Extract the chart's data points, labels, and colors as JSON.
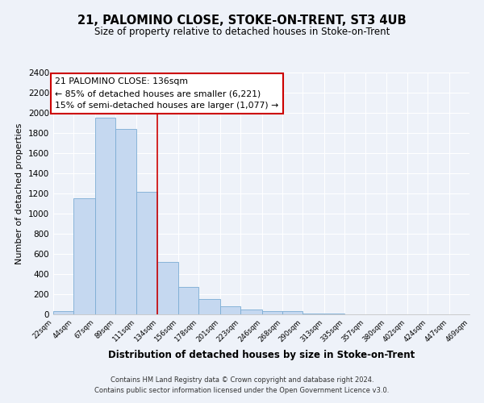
{
  "title1": "21, PALOMINO CLOSE, STOKE-ON-TRENT, ST3 4UB",
  "title2": "Size of property relative to detached houses in Stoke-on-Trent",
  "xlabel": "Distribution of detached houses by size in Stoke-on-Trent",
  "ylabel": "Number of detached properties",
  "bar_edges": [
    22,
    44,
    67,
    89,
    111,
    134,
    156,
    178,
    201,
    223,
    246,
    268,
    290,
    313,
    335,
    357,
    380,
    402,
    424,
    447,
    469
  ],
  "bar_heights": [
    30,
    1150,
    1950,
    1840,
    1220,
    520,
    270,
    150,
    80,
    50,
    35,
    35,
    10,
    5,
    3,
    2,
    1,
    1,
    1,
    1
  ],
  "bar_color": "#c5d8f0",
  "bar_edgecolor": "#7bacd4",
  "vline_x": 134,
  "vline_color": "#cc0000",
  "annotation_title": "21 PALOMINO CLOSE: 136sqm",
  "annotation_line1": "← 85% of detached houses are smaller (6,221)",
  "annotation_line2": "15% of semi-detached houses are larger (1,077) →",
  "annotation_box_edgecolor": "#cc0000",
  "ylim": [
    0,
    2400
  ],
  "yticks": [
    0,
    200,
    400,
    600,
    800,
    1000,
    1200,
    1400,
    1600,
    1800,
    2000,
    2200,
    2400
  ],
  "tick_labels": [
    "22sqm",
    "44sqm",
    "67sqm",
    "89sqm",
    "111sqm",
    "134sqm",
    "156sqm",
    "178sqm",
    "201sqm",
    "223sqm",
    "246sqm",
    "268sqm",
    "290sqm",
    "313sqm",
    "335sqm",
    "357sqm",
    "380sqm",
    "402sqm",
    "424sqm",
    "447sqm",
    "469sqm"
  ],
  "footer1": "Contains HM Land Registry data © Crown copyright and database right 2024.",
  "footer2": "Contains public sector information licensed under the Open Government Licence v3.0.",
  "bg_color": "#eef2f9",
  "grid_color": "#ffffff"
}
